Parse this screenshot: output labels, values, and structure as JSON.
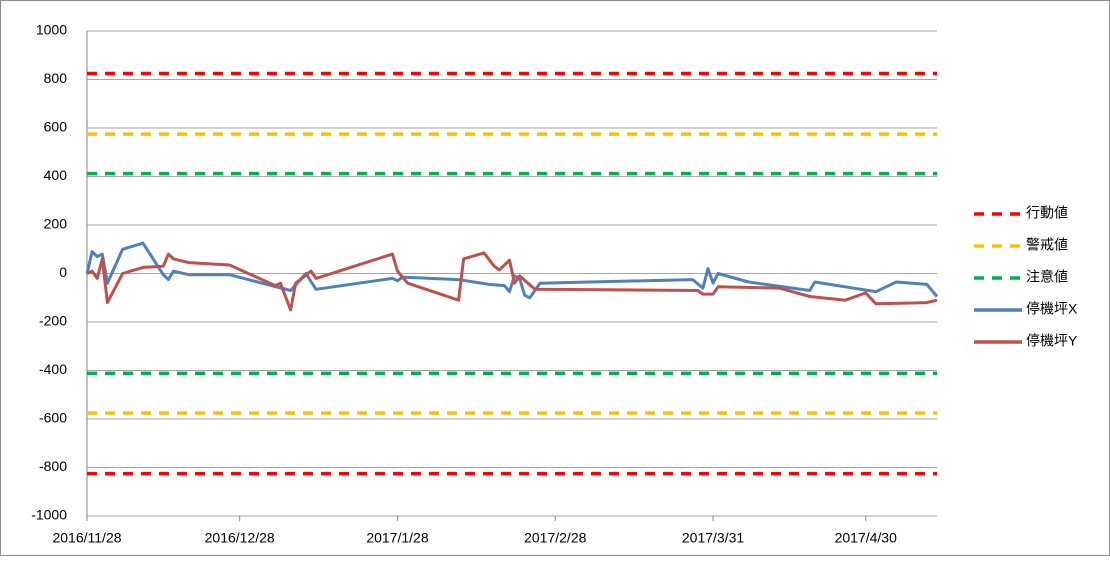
{
  "chart_data": {
    "type": "line",
    "xlim": [
      "2016/11/28",
      "2017/5/14"
    ],
    "xticks": [
      "2016/11/28",
      "2016/12/28",
      "2017/1/28",
      "2017/2/28",
      "2017/3/31",
      "2017/4/30"
    ],
    "ylim": [
      -1000,
      1000
    ],
    "yticks": [
      -1000,
      -800,
      -600,
      -400,
      -200,
      0,
      200,
      400,
      600,
      800,
      1000
    ],
    "grid": true,
    "legend": "right",
    "series": [
      {
        "name": "行動値",
        "color": "#ff0000",
        "dashed": true,
        "levels": [
          825,
          -825
        ]
      },
      {
        "name": "警戒値",
        "color": "#ffc000",
        "dashed": true,
        "levels": [
          575,
          -575
        ]
      },
      {
        "name": "注意値",
        "color": "#00b050",
        "dashed": true,
        "levels": [
          412,
          -412
        ]
      },
      {
        "name": "停機坪X",
        "color": "#4f81bd",
        "x": [
          "2016/11/28",
          "2016/11/29",
          "2016/11/30",
          "2016/12/1",
          "2016/12/2",
          "2016/12/5",
          "2016/12/9",
          "2016/12/13",
          "2016/12/14",
          "2016/12/15",
          "2016/12/18",
          "2016/12/26",
          "2017/1/7",
          "2017/1/10",
          "2017/1/12",
          "2017/1/27",
          "2017/1/28",
          "2017/1/29",
          "2017/2/9",
          "2017/2/15",
          "2017/2/18",
          "2017/2/19",
          "2017/2/20",
          "2017/2/21",
          "2017/2/22",
          "2017/2/23",
          "2017/2/25",
          "2017/3/27",
          "2017/3/29",
          "2017/3/30",
          "2017/3/31",
          "2017/4/1",
          "2017/4/7",
          "2017/4/19",
          "2017/4/20",
          "2017/5/2",
          "2017/5/6",
          "2017/5/12",
          "2017/5/14"
        ],
        "values": [
          0,
          90,
          70,
          80,
          -40,
          100,
          125,
          -5,
          -25,
          10,
          -5,
          -5,
          -70,
          0,
          -65,
          -20,
          -30,
          -15,
          -25,
          -45,
          -50,
          -75,
          -10,
          -20,
          -90,
          -100,
          -40,
          -25,
          -60,
          20,
          -40,
          0,
          -35,
          -70,
          -35,
          -75,
          -35,
          -45,
          -95
        ]
      },
      {
        "name": "停機坪Y",
        "color": "#c0504d",
        "x": [
          "2016/11/28",
          "2016/11/29",
          "2016/11/30",
          "2016/12/1",
          "2016/12/2",
          "2016/12/5",
          "2016/12/9",
          "2016/12/13",
          "2016/12/14",
          "2016/12/15",
          "2016/12/18",
          "2016/12/26",
          "2017/1/4",
          "2017/1/5",
          "2017/1/7",
          "2017/1/8",
          "2017/1/11",
          "2017/1/12",
          "2017/1/27",
          "2017/1/28",
          "2017/1/30",
          "2017/2/9",
          "2017/2/10",
          "2017/2/14",
          "2017/2/16",
          "2017/2/17",
          "2017/2/19",
          "2017/2/20",
          "2017/2/21",
          "2017/2/24",
          "2017/3/28",
          "2017/3/29",
          "2017/3/31",
          "2017/4/1",
          "2017/4/13",
          "2017/4/19",
          "2017/4/26",
          "2017/4/30",
          "2017/5/2",
          "2017/5/12",
          "2017/5/14"
        ],
        "values": [
          0,
          10,
          -20,
          60,
          -120,
          0,
          25,
          30,
          80,
          60,
          45,
          35,
          -50,
          -40,
          -150,
          -40,
          10,
          -20,
          80,
          10,
          -40,
          -110,
          60,
          85,
          30,
          15,
          55,
          -40,
          -10,
          -65,
          -70,
          -85,
          -85,
          -55,
          -60,
          -95,
          -110,
          -80,
          -125,
          -120,
          -110
        ]
      }
    ]
  }
}
